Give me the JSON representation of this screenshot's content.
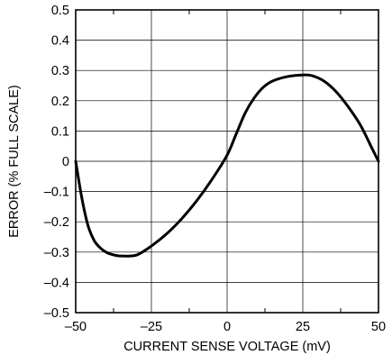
{
  "chart_data": {
    "type": "line",
    "title": "",
    "xlabel": "CURRENT SENSE VOLTAGE (mV)",
    "ylabel": "ERROR (% FULL SCALE)",
    "xlim": [
      -50,
      50
    ],
    "ylim": [
      -0.5,
      0.5
    ],
    "grid": true,
    "x_ticks": [
      -50,
      -25,
      0,
      25,
      50
    ],
    "x_tick_labels": [
      "–50",
      "–25",
      "0",
      "25",
      "50"
    ],
    "x_minor_ticks": [
      -37.5,
      -12.5,
      12.5,
      37.5
    ],
    "y_ticks": [
      0.5,
      0.4,
      0.3,
      0.2,
      0.1,
      0,
      -0.1,
      -0.2,
      -0.3,
      -0.4,
      -0.5
    ],
    "y_tick_labels": [
      "0.5",
      "0.4",
      "0.3",
      "0.2",
      "0.1",
      "0",
      "–0.1",
      "–0.2",
      "–0.3",
      "–0.4",
      "–0.5"
    ],
    "series": [
      {
        "x": [
          -50,
          -48,
          -46,
          -44,
          -42,
          -40,
          -38,
          -36,
          -34,
          -32,
          -30,
          -28,
          -25,
          -20,
          -15,
          -10,
          -5,
          0,
          3,
          6,
          9,
          12,
          15,
          20,
          25,
          28,
          32,
          36,
          40,
          44,
          48,
          50
        ],
        "values": [
          0.0,
          -0.12,
          -0.21,
          -0.26,
          -0.285,
          -0.3,
          -0.308,
          -0.312,
          -0.313,
          -0.313,
          -0.31,
          -0.3,
          -0.28,
          -0.24,
          -0.19,
          -0.13,
          -0.06,
          0.02,
          0.09,
          0.16,
          0.21,
          0.245,
          0.265,
          0.28,
          0.285,
          0.283,
          0.265,
          0.23,
          0.18,
          0.12,
          0.04,
          0.0
        ]
      }
    ]
  }
}
